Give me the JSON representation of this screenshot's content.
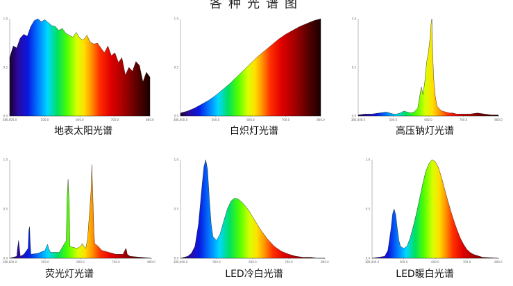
{
  "title": "各种光谱图",
  "chart_data": [
    {
      "type": "area",
      "title": "地表太阳光谱",
      "x": [
        380,
        390,
        400,
        410,
        420,
        430,
        440,
        450,
        460,
        470,
        480,
        490,
        500,
        510,
        520,
        530,
        540,
        550,
        560,
        570,
        580,
        590,
        600,
        610,
        620,
        630,
        640,
        650,
        660,
        670,
        680,
        690,
        700,
        710,
        720,
        730,
        740,
        750,
        760,
        770,
        780
      ],
      "values": [
        0.6,
        0.72,
        0.7,
        0.8,
        0.84,
        0.82,
        0.92,
        0.98,
        1.0,
        0.97,
        0.99,
        0.96,
        0.93,
        0.92,
        0.88,
        0.9,
        0.85,
        0.83,
        0.81,
        0.86,
        0.8,
        0.78,
        0.83,
        0.76,
        0.74,
        0.75,
        0.7,
        0.65,
        0.72,
        0.62,
        0.65,
        0.55,
        0.6,
        0.42,
        0.5,
        0.46,
        0.56,
        0.52,
        0.35,
        0.45,
        0.4
      ],
      "xticks": [
        "380,000.0",
        "500.0",
        "600.0",
        "700.0",
        "800.0"
      ],
      "yticks": [
        "1.0",
        "0.5",
        "0.0"
      ],
      "ylim": [
        0,
        1
      ]
    },
    {
      "type": "area",
      "title": "白炽灯光谱",
      "x": [
        380,
        400,
        420,
        440,
        460,
        480,
        500,
        520,
        540,
        560,
        580,
        600,
        620,
        640,
        660,
        680,
        700,
        720,
        740,
        760,
        780
      ],
      "values": [
        0.03,
        0.05,
        0.08,
        0.12,
        0.16,
        0.21,
        0.27,
        0.33,
        0.4,
        0.47,
        0.54,
        0.61,
        0.67,
        0.73,
        0.79,
        0.84,
        0.88,
        0.92,
        0.95,
        0.98,
        1.0
      ],
      "xticks": [
        "380,000.0",
        "500.0",
        "600.0",
        "700.0",
        "800.0"
      ],
      "yticks": [
        "1.0",
        "0.5",
        "0.0"
      ],
      "ylim": [
        0,
        1
      ]
    },
    {
      "type": "area",
      "title": "高压钠灯光谱",
      "x": [
        380,
        400,
        420,
        440,
        460,
        470,
        480,
        490,
        500,
        510,
        520,
        530,
        540,
        550,
        560,
        565,
        570,
        575,
        580,
        585,
        588,
        590,
        592,
        595,
        600,
        605,
        610,
        615,
        620,
        630,
        640,
        650,
        660,
        680,
        700,
        720,
        740,
        760,
        780
      ],
      "values": [
        0.01,
        0.02,
        0.02,
        0.03,
        0.04,
        0.03,
        0.02,
        0.02,
        0.03,
        0.05,
        0.04,
        0.03,
        0.04,
        0.08,
        0.3,
        0.22,
        0.35,
        0.55,
        0.65,
        0.8,
        0.95,
        1.0,
        0.7,
        0.4,
        0.2,
        0.1,
        0.08,
        0.06,
        0.05,
        0.04,
        0.03,
        0.03,
        0.02,
        0.02,
        0.02,
        0.03,
        0.02,
        0.01,
        0.01
      ],
      "xticks": [
        "380,000.0",
        "500.0",
        "600.0",
        "700.0",
        "800.0"
      ],
      "yticks": [
        "1.0",
        "0.5",
        "0.0"
      ],
      "ylim": [
        0,
        1
      ]
    },
    {
      "type": "area",
      "title": "荧光灯光谱",
      "x": [
        380,
        400,
        402,
        405,
        408,
        410,
        420,
        432,
        434,
        436,
        438,
        440,
        460,
        480,
        484,
        487,
        490,
        495,
        520,
        540,
        542,
        545,
        548,
        550,
        570,
        580,
        585,
        590,
        595,
        600,
        605,
        610,
        612,
        615,
        618,
        620,
        630,
        640,
        660,
        680,
        700,
        708,
        710,
        712,
        720,
        780
      ],
      "values": [
        0.0,
        0.02,
        0.1,
        0.18,
        0.08,
        0.02,
        0.04,
        0.1,
        0.28,
        0.32,
        0.15,
        0.04,
        0.05,
        0.08,
        0.12,
        0.14,
        0.1,
        0.06,
        0.06,
        0.18,
        0.6,
        0.8,
        0.55,
        0.12,
        0.1,
        0.12,
        0.15,
        0.12,
        0.1,
        0.2,
        0.45,
        0.7,
        0.95,
        0.6,
        0.25,
        0.15,
        0.12,
        0.08,
        0.06,
        0.04,
        0.04,
        0.1,
        0.08,
        0.04,
        0.02,
        0.0
      ],
      "xticks": [
        "380,000.0",
        "500.0",
        "600.0",
        "700.0",
        "800.0"
      ],
      "yticks": [
        "1.0",
        "0.5",
        "0.0"
      ],
      "ylim": [
        0,
        1
      ]
    },
    {
      "type": "area",
      "title": "LED冷白光谱",
      "x": [
        380,
        400,
        410,
        420,
        430,
        440,
        445,
        450,
        455,
        460,
        465,
        470,
        480,
        490,
        500,
        510,
        520,
        530,
        540,
        550,
        560,
        570,
        580,
        590,
        600,
        620,
        640,
        660,
        680,
        700,
        720,
        740,
        760,
        780
      ],
      "values": [
        0.0,
        0.02,
        0.05,
        0.12,
        0.35,
        0.75,
        0.93,
        1.0,
        0.9,
        0.6,
        0.35,
        0.22,
        0.18,
        0.25,
        0.38,
        0.5,
        0.58,
        0.61,
        0.6,
        0.57,
        0.53,
        0.48,
        0.42,
        0.36,
        0.3,
        0.2,
        0.12,
        0.07,
        0.04,
        0.02,
        0.01,
        0.01,
        0.0,
        0.0
      ],
      "xticks": [
        "380,000.0",
        "500.0",
        "600.0",
        "700.0",
        "800.0"
      ],
      "yticks": [
        "1.0",
        "0.5",
        "0.0"
      ],
      "ylim": [
        0,
        1
      ]
    },
    {
      "type": "area",
      "title": "LED暖白光谱",
      "x": [
        380,
        420,
        430,
        440,
        445,
        450,
        455,
        460,
        465,
        470,
        480,
        490,
        500,
        510,
        520,
        530,
        540,
        550,
        560,
        570,
        580,
        590,
        600,
        610,
        620,
        630,
        640,
        650,
        660,
        670,
        680,
        690,
        700,
        710,
        720,
        730,
        780
      ],
      "values": [
        0.0,
        0.02,
        0.08,
        0.3,
        0.45,
        0.5,
        0.44,
        0.3,
        0.18,
        0.12,
        0.1,
        0.12,
        0.2,
        0.32,
        0.45,
        0.6,
        0.75,
        0.88,
        0.96,
        1.0,
        0.98,
        0.92,
        0.82,
        0.7,
        0.58,
        0.47,
        0.37,
        0.28,
        0.2,
        0.14,
        0.09,
        0.06,
        0.04,
        0.03,
        0.02,
        0.01,
        0.0
      ],
      "xticks": [
        "380,000.0",
        "500.0",
        "600.0",
        "700.0",
        "800.0"
      ],
      "yticks": [
        "1.0",
        "0.5",
        "0.0"
      ],
      "ylim": [
        0,
        1
      ]
    }
  ]
}
